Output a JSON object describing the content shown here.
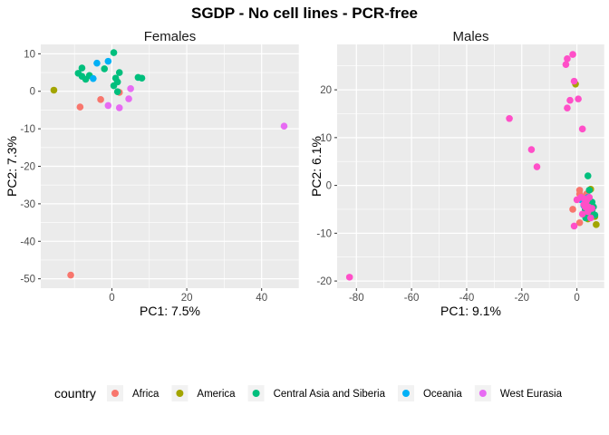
{
  "title": "SGDP - No cell lines - PCR-free",
  "colors": {
    "Africa": "#F8766D",
    "America": "#A3A500",
    "Central Asia and Siberia": "#00BF7D",
    "Oceania": "#00B0F6",
    "West Eurasia": "#E76BF3",
    "West Eurasia (males)": "#FF4FC8"
  },
  "legend": {
    "title": "country",
    "entries": [
      "Africa",
      "America",
      "Central Asia and Siberia",
      "Oceania",
      "West Eurasia"
    ]
  },
  "chart_data": [
    {
      "type": "scatter",
      "facet": "Females",
      "xlabel": "PC1: 7.5%",
      "ylabel": "PC2: 7.3%",
      "xlim": [
        -19,
        50
      ],
      "ylim": [
        -52.5,
        12.5
      ],
      "xticks": [
        0,
        20,
        40
      ],
      "yticks": [
        10,
        0,
        -10,
        -20,
        -30,
        -40,
        -50
      ],
      "grid": true,
      "series": [
        {
          "name": "Africa",
          "points": [
            [
              -11,
              -49
            ],
            [
              -8.5,
              -4.2
            ],
            [
              -3,
              -2.2
            ],
            [
              2,
              -0.3
            ]
          ]
        },
        {
          "name": "America",
          "points": [
            [
              -15.5,
              0.3
            ]
          ]
        },
        {
          "name": "Central Asia and Siberia",
          "points": [
            [
              -9,
              4.8
            ],
            [
              -8,
              4
            ],
            [
              -7,
              3.2
            ],
            [
              -6,
              4.2
            ],
            [
              -8,
              6.2
            ],
            [
              -2,
              6
            ],
            [
              0.5,
              10.3
            ],
            [
              1,
              3.5
            ],
            [
              1.5,
              2.5
            ],
            [
              2,
              5
            ],
            [
              1.5,
              -0.1
            ],
            [
              7,
              3.7
            ],
            [
              8,
              3.5
            ],
            [
              0.5,
              1.5
            ]
          ]
        },
        {
          "name": "Oceania",
          "points": [
            [
              -4,
              7.5
            ],
            [
              -1,
              8
            ],
            [
              -5,
              3.4
            ]
          ]
        },
        {
          "name": "West Eurasia",
          "points": [
            [
              46,
              -9.3
            ],
            [
              -1,
              -3.8
            ],
            [
              2,
              -4.4
            ],
            [
              4.5,
              -2
            ],
            [
              5,
              0.7
            ]
          ]
        }
      ]
    },
    {
      "type": "scatter",
      "facet": "Males",
      "xlabel": "PC1: 9.1%",
      "ylabel": "PC2: 6.1%",
      "xlim": [
        -87,
        10
      ],
      "ylim": [
        -21.5,
        29.5
      ],
      "xticks": [
        -80,
        -60,
        -40,
        -20,
        0
      ],
      "yticks": [
        20,
        10,
        0,
        -10,
        -20
      ],
      "grid": true,
      "series": [
        {
          "name": "Africa",
          "points": [
            [
              -1.5,
              -5
            ],
            [
              1,
              -1
            ],
            [
              1,
              -1.8
            ],
            [
              2,
              -2.6
            ],
            [
              4,
              -6.5
            ],
            [
              1,
              -7.8
            ],
            [
              3.5,
              -1.8
            ]
          ]
        },
        {
          "name": "America",
          "points": [
            [
              -0.5,
              21.2
            ],
            [
              5,
              -0.8
            ],
            [
              7,
              -8.2
            ],
            [
              6.5,
              -6.5
            ],
            [
              4,
              -7
            ],
            [
              3.5,
              -3.5
            ]
          ]
        },
        {
          "name": "Central Asia and Siberia",
          "points": [
            [
              4,
              2
            ],
            [
              4.5,
              -1
            ],
            [
              5.5,
              -3.5
            ],
            [
              3,
              -5
            ],
            [
              6,
              -4.5
            ],
            [
              4.5,
              -6.2
            ],
            [
              3.2,
              -6.8
            ],
            [
              5.5,
              -5.2
            ],
            [
              6.5,
              -6.2
            ]
          ]
        },
        {
          "name": "Oceania",
          "points": [
            [
              1.5,
              -3
            ],
            [
              2.5,
              -4.2
            ],
            [
              4,
              -2.5
            ]
          ]
        },
        {
          "name": "West Eurasia",
          "points": [
            [
              -82.5,
              -19.2
            ],
            [
              -24.5,
              14
            ],
            [
              -16.5,
              7.5
            ],
            [
              -14.5,
              3.9
            ],
            [
              -3.5,
              26.5
            ],
            [
              -1.5,
              27.4
            ],
            [
              -4,
              25.3
            ],
            [
              -2.5,
              17.8
            ],
            [
              -1,
              21.8
            ],
            [
              0.5,
              18.1
            ],
            [
              2,
              11.8
            ],
            [
              -3.5,
              16.2
            ],
            [
              1.5,
              -2.5
            ],
            [
              -1,
              -8.5
            ],
            [
              0,
              -3
            ],
            [
              3,
              -4.5
            ],
            [
              2.5,
              -4
            ],
            [
              4.5,
              -2.5
            ],
            [
              3.5,
              -3.2
            ],
            [
              5.5,
              -4.8
            ],
            [
              4,
              -5.5
            ],
            [
              5,
              -6.8
            ],
            [
              2,
              -6
            ],
            [
              4.2,
              -4.5
            ],
            [
              2.8,
              -2.8
            ]
          ]
        }
      ]
    }
  ]
}
